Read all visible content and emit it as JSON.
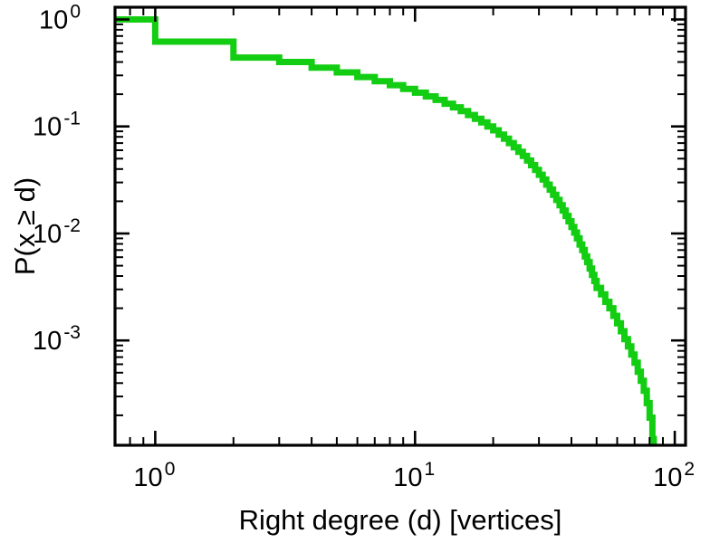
{
  "chart_data": {
    "type": "line",
    "subtype": "log-log CCDF step plot",
    "title": "",
    "xlabel": "Right degree (d) [vertices]",
    "ylabel": "P(x ≥ d)",
    "x_scale": "log",
    "y_scale": "log",
    "xlim": [
      0.7,
      110
    ],
    "ylim": [
      0.000105,
      1.3
    ],
    "x_tick_exponents": [
      0,
      1,
      2
    ],
    "y_tick_exponents": [
      0,
      -1,
      -2,
      -3
    ],
    "grid": false,
    "legend": "none",
    "line_color": "#12cd12",
    "axis_color": "#000000",
    "line_width": 7,
    "points": [
      [
        0.7,
        1.0
      ],
      [
        1,
        0.62
      ],
      [
        2,
        0.44
      ],
      [
        3,
        0.4
      ],
      [
        4,
        0.355
      ],
      [
        5,
        0.32
      ],
      [
        6,
        0.29
      ],
      [
        7,
        0.265
      ],
      [
        8,
        0.243
      ],
      [
        9,
        0.224
      ],
      [
        10,
        0.207
      ],
      [
        11,
        0.191
      ],
      [
        12,
        0.177
      ],
      [
        13,
        0.163
      ],
      [
        14,
        0.151
      ],
      [
        15,
        0.139
      ],
      [
        16,
        0.128
      ],
      [
        17,
        0.118
      ],
      [
        18,
        0.109
      ],
      [
        19,
        0.1
      ],
      [
        20,
        0.092
      ],
      [
        21,
        0.084
      ],
      [
        22,
        0.077
      ],
      [
        23,
        0.07
      ],
      [
        24,
        0.064
      ],
      [
        25,
        0.058
      ],
      [
        26,
        0.053
      ],
      [
        27,
        0.048
      ],
      [
        28,
        0.0435
      ],
      [
        29,
        0.0393
      ],
      [
        30,
        0.0354
      ],
      [
        31,
        0.0319
      ],
      [
        32,
        0.0286
      ],
      [
        33,
        0.0257
      ],
      [
        34,
        0.023
      ],
      [
        35,
        0.0206
      ],
      [
        36,
        0.0184
      ],
      [
        37,
        0.0164
      ],
      [
        38,
        0.0146
      ],
      [
        39,
        0.013
      ],
      [
        40,
        0.0115
      ],
      [
        41,
        0.0102
      ],
      [
        42,
        0.009
      ],
      [
        43,
        0.0079
      ],
      [
        44,
        0.007
      ],
      [
        45,
        0.0061
      ],
      [
        46,
        0.0054
      ],
      [
        47,
        0.0047
      ],
      [
        48,
        0.0041
      ],
      [
        49,
        0.0036
      ],
      [
        50,
        0.0031
      ],
      [
        52,
        0.0027
      ],
      [
        54,
        0.0023
      ],
      [
        56,
        0.002
      ],
      [
        58,
        0.0017
      ],
      [
        60,
        0.00145
      ],
      [
        62,
        0.00122
      ],
      [
        64,
        0.00103
      ],
      [
        66,
        0.00088
      ],
      [
        68,
        0.00074
      ],
      [
        70,
        0.00062
      ],
      [
        72,
        0.00051
      ],
      [
        74,
        0.00042
      ],
      [
        76,
        0.00034
      ],
      [
        78,
        0.00026
      ],
      [
        80,
        0.00019
      ],
      [
        82,
        0.00012
      ],
      [
        83,
        1e-05
      ]
    ]
  }
}
